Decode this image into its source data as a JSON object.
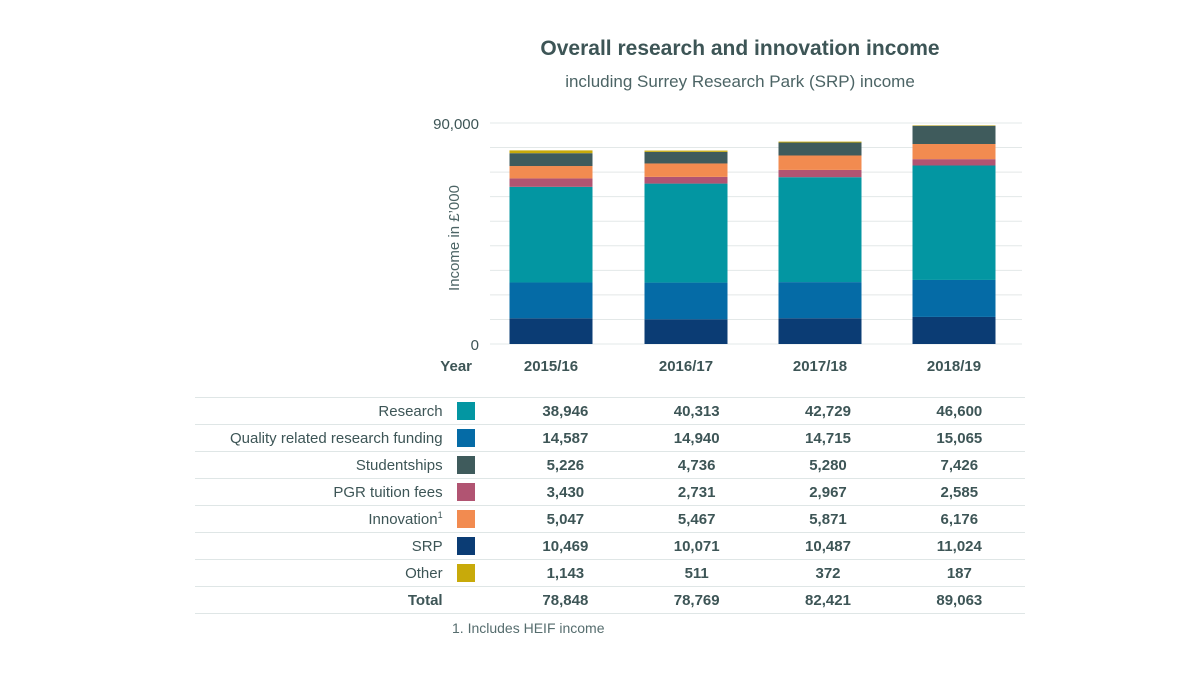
{
  "chart_data": {
    "type": "bar",
    "stacked": true,
    "title": "Overall research and innovation income",
    "subtitle": "including Surrey Research Park (SRP) income",
    "xlabel": "Year",
    "ylabel": "Income in £’000",
    "ylim": [
      0,
      90000
    ],
    "yticks": [
      "0",
      "90,000"
    ],
    "categories": [
      "2015/16",
      "2016/17",
      "2017/18",
      "2018/19"
    ],
    "series": [
      {
        "name": "SRP",
        "color": "#0b3c74",
        "values": [
          10469,
          10071,
          10487,
          11024
        ]
      },
      {
        "name": "Quality related research funding",
        "color": "#056ba6",
        "values": [
          14587,
          14940,
          14715,
          15065
        ]
      },
      {
        "name": "Research",
        "color": "#0396a2",
        "values": [
          38946,
          40313,
          42729,
          46600
        ]
      },
      {
        "name": "PGR tuition fees",
        "color": "#b15472",
        "values": [
          3430,
          2731,
          2967,
          2585
        ]
      },
      {
        "name": "Innovation",
        "color": "#f28b50",
        "values": [
          5047,
          5467,
          5871,
          6176
        ]
      },
      {
        "name": "Studentships",
        "color": "#3f5b5c",
        "values": [
          5226,
          4736,
          5280,
          7426
        ]
      },
      {
        "name": "Other",
        "color": "#c8aa0a",
        "values": [
          1143,
          511,
          372,
          187
        ]
      }
    ],
    "totals": [
      78848,
      78769,
      82421,
      89063
    ]
  },
  "table": {
    "rows": [
      {
        "label": "Research",
        "sup": "",
        "color": "#0396a2",
        "values": [
          "38,946",
          "40,313",
          "42,729",
          "46,600"
        ]
      },
      {
        "label": "Quality related research funding",
        "sup": "",
        "color": "#056ba6",
        "values": [
          "14,587",
          "14,940",
          "14,715",
          "15,065"
        ]
      },
      {
        "label": "Studentships",
        "sup": "",
        "color": "#3f5b5c",
        "values": [
          "5,226",
          "4,736",
          "5,280",
          "7,426"
        ]
      },
      {
        "label": "PGR tuition fees",
        "sup": "",
        "color": "#b15472",
        "values": [
          "3,430",
          "2,731",
          "2,967",
          "2,585"
        ]
      },
      {
        "label": "Innovation",
        "sup": "1",
        "color": "#f28b50",
        "values": [
          "5,047",
          "5,467",
          "5,871",
          "6,176"
        ]
      },
      {
        "label": "SRP",
        "sup": "",
        "color": "#0b3c74",
        "values": [
          "10,469",
          "10,071",
          "10,487",
          "11,024"
        ]
      },
      {
        "label": "Other",
        "sup": "",
        "color": "#c8aa0a",
        "values": [
          "1,143",
          "511",
          "372",
          "187"
        ]
      }
    ],
    "total": {
      "label": "Total",
      "values": [
        "78,848",
        "78,769",
        "82,421",
        "89,063"
      ]
    }
  },
  "footnote": "1. Includes HEIF income"
}
